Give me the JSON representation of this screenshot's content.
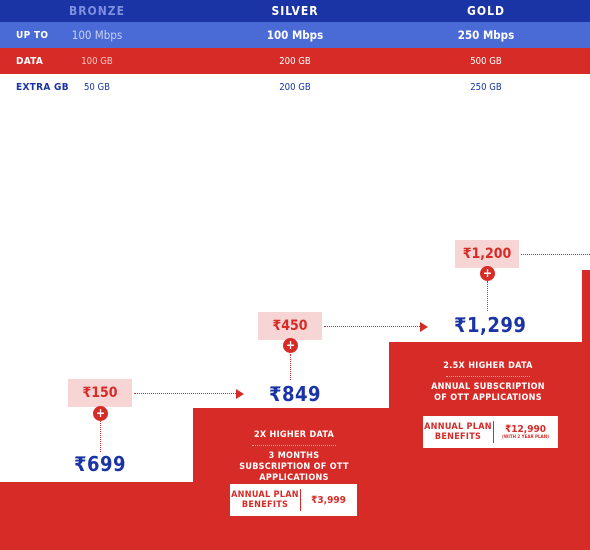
{
  "table": {
    "headers": [
      "BRONZE",
      "SILVER",
      "GOLD"
    ],
    "rows": [
      {
        "label": "UP TO",
        "values": [
          "100 Mbps",
          "100 Mbps",
          "250 Mbps"
        ]
      },
      {
        "label": "DATA",
        "values": [
          "100 GB",
          "200 GB",
          "500 GB"
        ]
      },
      {
        "label": "EXTRA GB",
        "values": [
          "50 GB",
          "200 GB",
          "250 GB"
        ]
      }
    ]
  },
  "plans": [
    {
      "addon": "₹150",
      "price": "₹699"
    },
    {
      "addon": "₹450",
      "price": "₹849",
      "benefit_1": "2X HIGHER DATA",
      "benefit_2": "3 MONTHS SUBSCRIPTION OF OTT APPLICATIONS",
      "annual_label": "ANNUAL PLAN BENEFITS",
      "annual_price": "₹3,999"
    },
    {
      "addon": "₹1,200",
      "price": "₹1,299",
      "benefit_1": "2.5X HIGHER DATA",
      "benefit_2": "ANNUAL SUBSCRIPTION OF OTT APPLICATIONS",
      "annual_label": "ANNUAL PLAN BENEFITS",
      "annual_price": "₹12,990",
      "annual_note": "(WITH 2 YEAR PLAN)"
    }
  ],
  "plus_symbol": "+",
  "colors": {
    "blue_dark": "#1b34a5",
    "blue_mid": "#4a6ad6",
    "red": "#d62b27",
    "pink": "#f6d5d4"
  }
}
